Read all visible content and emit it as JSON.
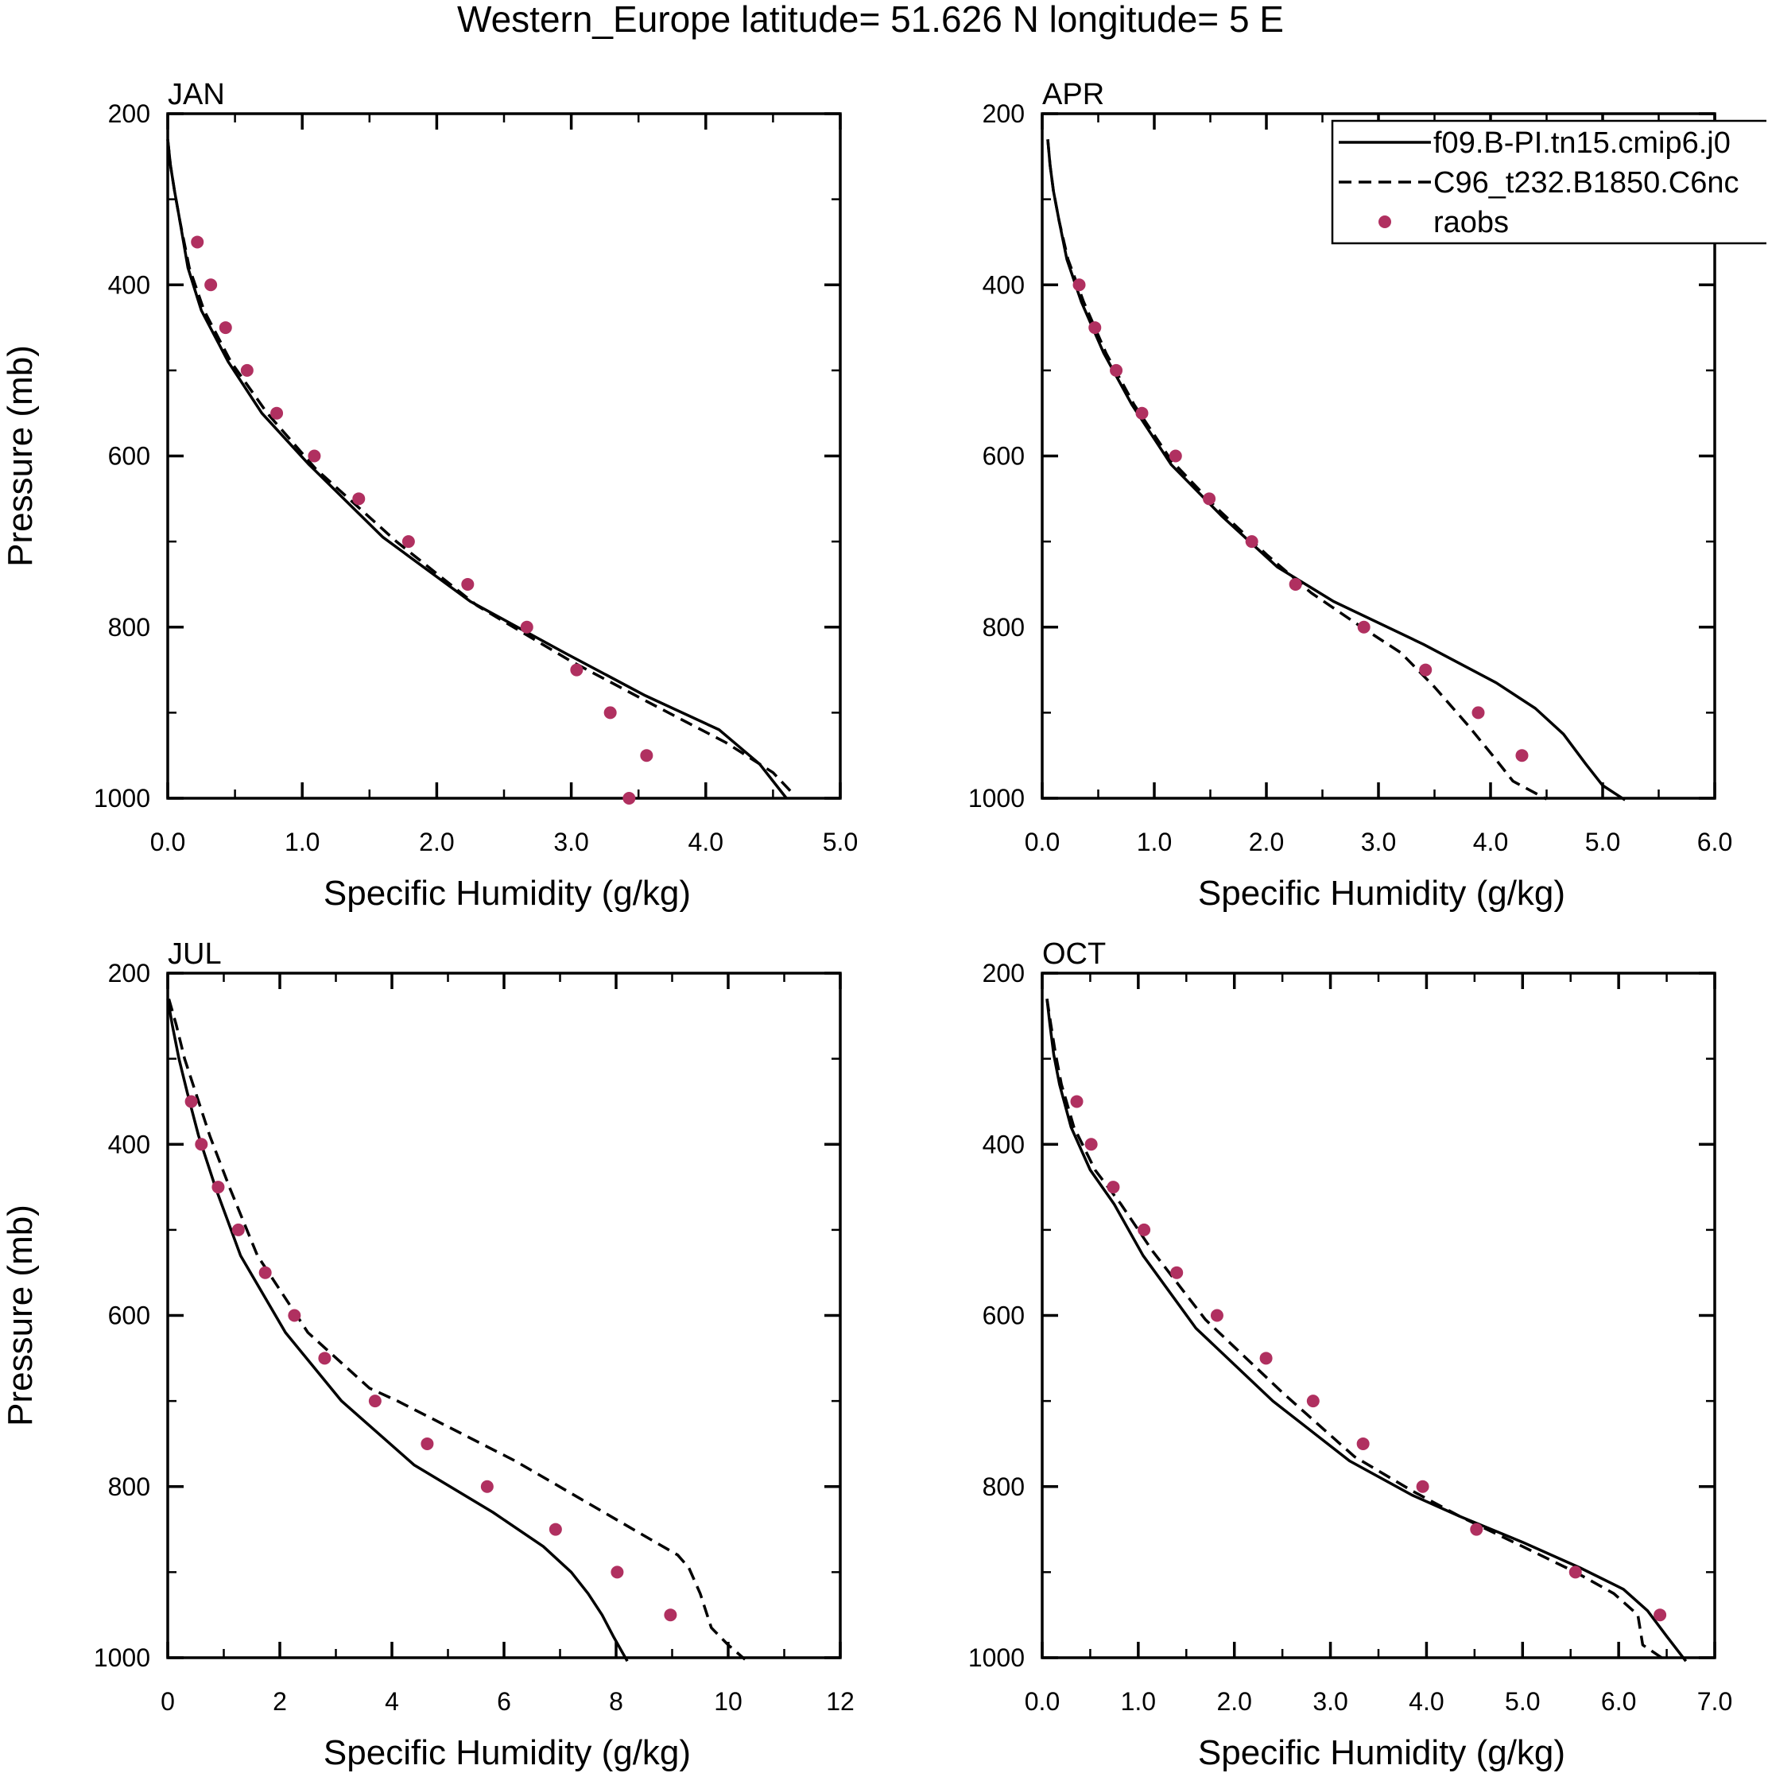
{
  "figure": {
    "title": "Western_Europe  latitude= 51.626 N longitude= 5 E"
  },
  "colors": {
    "line": "#000000",
    "raobs": "#b03060"
  },
  "legend": {
    "entries": [
      {
        "label": "f09.B-PI.tn15.cmip6.j0",
        "style": "solid"
      },
      {
        "label": "C96_t232.B1850.C6nc",
        "style": "dashed"
      },
      {
        "label": "raobs",
        "style": "dot"
      }
    ]
  },
  "chart_data": [
    {
      "type": "line",
      "title": "JAN",
      "xlabel": "Specific Humidity (g/kg)",
      "ylabel": "Pressure (mb)",
      "xlim": [
        0,
        5
      ],
      "ylim": [
        200,
        1000
      ],
      "y_reversed": true,
      "xticks": [
        0,
        1,
        2,
        3,
        4,
        5
      ],
      "xtick_labels": [
        "0.0",
        "1.0",
        "2.0",
        "3.0",
        "4.0",
        "5.0"
      ],
      "yticks": [
        200,
        400,
        600,
        800,
        1000
      ],
      "ytick_labels": [
        "200",
        "400",
        "600",
        "800",
        "1000"
      ],
      "series": [
        {
          "name": "f09.B-PI.tn15.cmip6.j0",
          "style": "solid",
          "x": [
            0.0,
            0.02,
            0.05,
            0.09,
            0.15,
            0.25,
            0.45,
            0.7,
            1.05,
            1.6,
            2.25,
            2.95,
            3.55,
            4.1,
            4.4,
            4.6
          ],
          "y": [
            230,
            260,
            290,
            325,
            380,
            430,
            490,
            550,
            610,
            695,
            770,
            830,
            880,
            920,
            960,
            1000
          ]
        },
        {
          "name": "C96_t232.B1850.C6nc",
          "style": "dashed",
          "x": [
            0.0,
            0.02,
            0.05,
            0.09,
            0.16,
            0.27,
            0.47,
            0.74,
            1.1,
            1.7,
            2.3,
            3.0,
            3.6,
            4.15,
            4.5,
            4.65
          ],
          "y": [
            230,
            260,
            290,
            325,
            380,
            430,
            490,
            550,
            615,
            700,
            775,
            840,
            890,
            935,
            970,
            995
          ]
        },
        {
          "name": "raobs",
          "style": "dot",
          "x": [
            0.22,
            0.32,
            0.43,
            0.59,
            0.81,
            1.09,
            1.42,
            1.79,
            2.23,
            2.67,
            3.04,
            3.29,
            3.56,
            3.43
          ],
          "y": [
            350,
            400,
            450,
            500,
            550,
            600,
            650,
            700,
            750,
            800,
            850,
            900,
            950,
            1000
          ]
        }
      ]
    },
    {
      "type": "line",
      "title": "APR",
      "xlabel": "Specific Humidity (g/kg)",
      "ylabel": "Pressure (mb)",
      "xlim": [
        0,
        6
      ],
      "ylim": [
        200,
        1000
      ],
      "y_reversed": true,
      "xticks": [
        0,
        1,
        2,
        3,
        4,
        5,
        6
      ],
      "xtick_labels": [
        "0.0",
        "1.0",
        "2.0",
        "3.0",
        "4.0",
        "5.0",
        "6.0"
      ],
      "yticks": [
        200,
        400,
        600,
        800,
        1000
      ],
      "ytick_labels": [
        "200",
        "400",
        "600",
        "800",
        "1000"
      ],
      "series": [
        {
          "name": "f09.B-PI.tn15.cmip6.j0",
          "style": "solid",
          "x": [
            0.05,
            0.07,
            0.1,
            0.15,
            0.22,
            0.35,
            0.55,
            0.8,
            1.15,
            1.6,
            2.1,
            2.6,
            3.4,
            4.05,
            4.4,
            4.65,
            4.85,
            5.0,
            5.2
          ],
          "y": [
            230,
            260,
            290,
            325,
            370,
            420,
            480,
            540,
            610,
            670,
            730,
            770,
            820,
            865,
            895,
            925,
            960,
            985,
            1002
          ]
        },
        {
          "name": "C96_t232.B1850.C6nc",
          "style": "dashed",
          "x": [
            0.05,
            0.07,
            0.1,
            0.15,
            0.23,
            0.37,
            0.57,
            0.82,
            1.15,
            1.55,
            2.0,
            2.4,
            2.85,
            3.2,
            3.5,
            3.8,
            4.05,
            4.2,
            4.5
          ],
          "y": [
            230,
            260,
            290,
            325,
            370,
            420,
            480,
            540,
            605,
            660,
            715,
            760,
            800,
            830,
            870,
            915,
            955,
            980,
            1001
          ]
        },
        {
          "name": "raobs",
          "style": "dot",
          "x": [
            0.33,
            0.47,
            0.66,
            0.89,
            1.19,
            1.49,
            1.87,
            2.26,
            2.87,
            3.42,
            3.89,
            4.28
          ],
          "y": [
            400,
            450,
            500,
            550,
            600,
            650,
            700,
            750,
            800,
            850,
            900,
            950
          ]
        }
      ]
    },
    {
      "type": "line",
      "title": "JUL",
      "xlabel": "Specific Humidity (g/kg)",
      "ylabel": "Pressure (mb)",
      "xlim": [
        0,
        12
      ],
      "ylim": [
        200,
        1000
      ],
      "y_reversed": true,
      "xticks": [
        0,
        2,
        4,
        6,
        8,
        10,
        12
      ],
      "xtick_labels": [
        "0",
        "2",
        "4",
        "6",
        "8",
        "10",
        "12"
      ],
      "yticks": [
        200,
        400,
        600,
        800,
        1000
      ],
      "ytick_labels": [
        "200",
        "400",
        "600",
        "800",
        "1000"
      ],
      "series": [
        {
          "name": "f09.B-PI.tn15.cmip6.j0",
          "style": "solid",
          "x": [
            0.0,
            0.08,
            0.2,
            0.35,
            0.55,
            0.85,
            1.3,
            2.1,
            3.1,
            4.4,
            5.8,
            6.7,
            7.2,
            7.5,
            7.75,
            7.95,
            8.2
          ],
          "y": [
            230,
            260,
            300,
            340,
            390,
            450,
            530,
            620,
            700,
            775,
            830,
            870,
            900,
            925,
            950,
            975,
            1004
          ]
        },
        {
          "name": "C96_t232.B1850.C6nc",
          "style": "dashed",
          "x": [
            0.02,
            0.15,
            0.3,
            0.5,
            0.75,
            1.1,
            1.6,
            2.5,
            3.6,
            4.1,
            6.2,
            8.7,
            9.1,
            9.3,
            9.5,
            9.7,
            10.0,
            10.3
          ],
          "y": [
            230,
            260,
            300,
            340,
            390,
            450,
            530,
            620,
            685,
            700,
            770,
            865,
            880,
            895,
            925,
            965,
            985,
            1002
          ]
        },
        {
          "name": "raobs",
          "style": "dot",
          "x": [
            0.42,
            0.6,
            0.9,
            1.26,
            1.74,
            2.26,
            2.8,
            3.7,
            4.63,
            5.7,
            6.92,
            8.02,
            8.97
          ],
          "y": [
            350,
            400,
            450,
            500,
            550,
            600,
            650,
            700,
            750,
            800,
            850,
            900,
            950
          ]
        }
      ]
    },
    {
      "type": "line",
      "title": "OCT",
      "xlabel": "Specific Humidity (g/kg)",
      "ylabel": "Pressure (mb)",
      "xlim": [
        0,
        7
      ],
      "ylim": [
        200,
        1000
      ],
      "y_reversed": true,
      "xticks": [
        0,
        1,
        2,
        3,
        4,
        5,
        6,
        7
      ],
      "xtick_labels": [
        "0.0",
        "1.0",
        "2.0",
        "3.0",
        "4.0",
        "5.0",
        "6.0",
        "7.0"
      ],
      "yticks": [
        200,
        400,
        600,
        800,
        1000
      ],
      "ytick_labels": [
        "200",
        "400",
        "600",
        "800",
        "1000"
      ],
      "series": [
        {
          "name": "f09.B-PI.tn15.cmip6.j0",
          "style": "solid",
          "x": [
            0.05,
            0.08,
            0.12,
            0.18,
            0.3,
            0.5,
            0.75,
            1.05,
            1.6,
            2.4,
            3.2,
            3.85,
            4.35,
            5.0,
            5.6,
            6.05,
            6.3,
            6.5,
            6.7
          ],
          "y": [
            230,
            260,
            295,
            330,
            380,
            430,
            470,
            530,
            615,
            700,
            770,
            810,
            835,
            865,
            895,
            920,
            945,
            975,
            1004
          ]
        },
        {
          "name": "C96_t232.B1850.C6nc",
          "style": "dashed",
          "x": [
            0.05,
            0.09,
            0.14,
            0.2,
            0.33,
            0.55,
            0.82,
            1.15,
            1.7,
            2.5,
            3.25,
            3.85,
            4.35,
            5.0,
            5.55,
            5.95,
            6.2,
            6.25,
            6.5
          ],
          "y": [
            230,
            260,
            295,
            330,
            380,
            430,
            470,
            525,
            605,
            690,
            765,
            805,
            835,
            870,
            900,
            925,
            950,
            985,
            1004
          ]
        },
        {
          "name": "raobs",
          "style": "dot",
          "x": [
            0.36,
            0.51,
            0.74,
            1.06,
            1.4,
            1.82,
            2.33,
            2.82,
            3.34,
            3.96,
            4.52,
            5.55,
            6.43
          ],
          "y": [
            350,
            400,
            450,
            500,
            550,
            600,
            650,
            700,
            750,
            800,
            850,
            900,
            950
          ]
        }
      ]
    }
  ]
}
